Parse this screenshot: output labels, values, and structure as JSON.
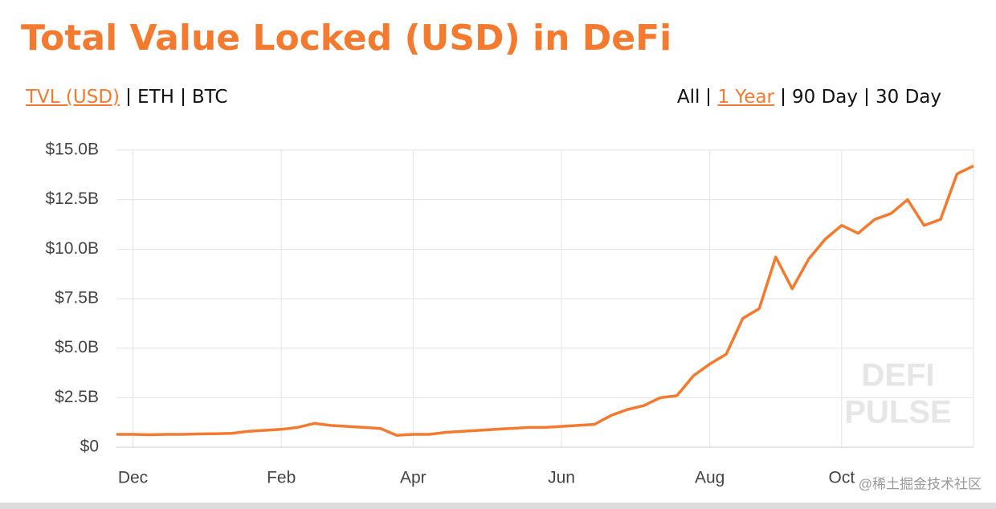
{
  "chart_data": {
    "type": "line",
    "title": "Total Value Locked (USD) in DeFi",
    "left_tabs": [
      "TVL (USD)",
      "ETH",
      "BTC"
    ],
    "right_tabs": [
      "All",
      "1 Year",
      "90 Day",
      "30 Day"
    ],
    "watermark": [
      "DEFI",
      "PULSE"
    ],
    "credit": "@稀土掘金技术社区",
    "categories": [
      null,
      "Dec",
      null,
      null,
      null,
      null,
      null,
      null,
      null,
      null,
      "Feb",
      null,
      null,
      null,
      null,
      null,
      null,
      null,
      "Apr",
      null,
      null,
      null,
      null,
      null,
      null,
      null,
      null,
      "Jun",
      null,
      null,
      null,
      null,
      null,
      null,
      null,
      null,
      "Aug",
      null,
      null,
      null,
      null,
      null,
      null,
      null,
      "Oct",
      null,
      null,
      null,
      null,
      null,
      null,
      null,
      null
    ],
    "series": [
      {
        "name": "TVL (USD)",
        "color": "#f47a2f",
        "values": [
          0.65,
          0.65,
          0.63,
          0.65,
          0.65,
          0.67,
          0.68,
          0.7,
          0.8,
          0.85,
          0.9,
          1.0,
          1.2,
          1.1,
          1.05,
          1.0,
          0.95,
          0.6,
          0.65,
          0.65,
          0.75,
          0.8,
          0.85,
          0.9,
          0.95,
          1.0,
          1.0,
          1.05,
          1.1,
          1.15,
          1.6,
          1.9,
          2.1,
          2.5,
          2.6,
          3.6,
          4.2,
          4.7,
          6.5,
          7.0,
          9.6,
          8.0,
          9.5,
          10.5,
          11.2,
          10.8,
          11.5,
          11.8,
          12.5,
          11.2,
          11.5,
          13.8,
          14.2
        ]
      }
    ],
    "ylim": [
      0,
      15
    ],
    "yticks": [
      {
        "value": 0,
        "label": "$0"
      },
      {
        "value": 2.5,
        "label": "$2.5B"
      },
      {
        "value": 5,
        "label": "$5.0B"
      },
      {
        "value": 7.5,
        "label": "$7.5B"
      },
      {
        "value": 10,
        "label": "$10.0B"
      },
      {
        "value": 12.5,
        "label": "$12.5B"
      },
      {
        "value": 15,
        "label": "$15.0B"
      }
    ],
    "grid": true
  }
}
